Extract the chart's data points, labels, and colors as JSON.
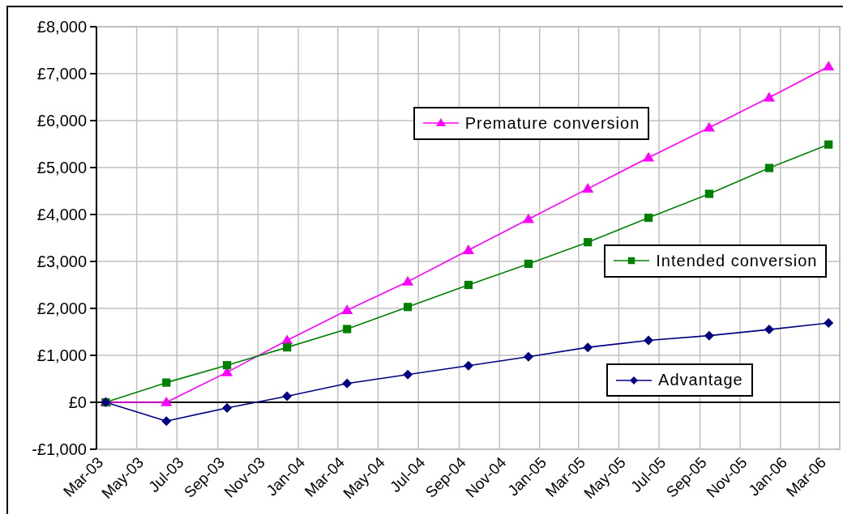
{
  "chart_data": {
    "type": "line",
    "x": [
      "2003-03-15",
      "2003-06-15",
      "2003-09-15",
      "2003-12-15",
      "2004-03-15",
      "2004-06-15",
      "2004-09-15",
      "2004-12-15",
      "2005-03-15",
      "2005-06-15",
      "2005-09-15",
      "2005-12-15",
      "2006-03-15"
    ],
    "series": [
      {
        "name": "Premature conversion",
        "color": "#ff00ff",
        "marker": "triangle",
        "values": [
          0,
          0,
          640,
          1320,
          1960,
          2570,
          3240,
          3900,
          4550,
          5210,
          5850,
          6490,
          7150
        ]
      },
      {
        "name": "Intended conversion",
        "color": "#008000",
        "marker": "square",
        "values": [
          0,
          420,
          790,
          1170,
          1560,
          2030,
          2500,
          2950,
          3410,
          3930,
          4440,
          4990,
          5490
        ]
      },
      {
        "name": "Advantage",
        "color": "#000080",
        "marker": "diamond",
        "values": [
          0,
          -400,
          -120,
          130,
          400,
          590,
          780,
          970,
          1170,
          1320,
          1420,
          1550,
          1690
        ]
      }
    ],
    "xlim": [
      "2003-03-01",
      "2006-04-01"
    ],
    "xticks": [
      {
        "value": "2003-03-01",
        "label": "Mar-03"
      },
      {
        "value": "2003-05-01",
        "label": "May-03"
      },
      {
        "value": "2003-07-01",
        "label": "Jul-03"
      },
      {
        "value": "2003-09-01",
        "label": "Sep-03"
      },
      {
        "value": "2003-11-01",
        "label": "Nov-03"
      },
      {
        "value": "2004-01-01",
        "label": "Jan-04"
      },
      {
        "value": "2004-03-01",
        "label": "Mar-04"
      },
      {
        "value": "2004-05-01",
        "label": "May-04"
      },
      {
        "value": "2004-07-01",
        "label": "Jul-04"
      },
      {
        "value": "2004-09-01",
        "label": "Sep-04"
      },
      {
        "value": "2004-11-01",
        "label": "Nov-04"
      },
      {
        "value": "2005-01-01",
        "label": "Jan-05"
      },
      {
        "value": "2005-03-01",
        "label": "Mar-05"
      },
      {
        "value": "2005-05-01",
        "label": "May-05"
      },
      {
        "value": "2005-07-01",
        "label": "Jul-05"
      },
      {
        "value": "2005-09-01",
        "label": "Sep-05"
      },
      {
        "value": "2005-11-01",
        "label": "Nov-05"
      },
      {
        "value": "2006-01-01",
        "label": "Jan-06"
      },
      {
        "value": "2006-03-01",
        "label": "Mar-06"
      }
    ],
    "ylim": [
      -1000,
      8000
    ],
    "yticks": [
      {
        "value": -1000,
        "label": "-£1,000"
      },
      {
        "value": 0,
        "label": "£0"
      },
      {
        "value": 1000,
        "label": "£1,000"
      },
      {
        "value": 2000,
        "label": "£2,000"
      },
      {
        "value": 3000,
        "label": "£3,000"
      },
      {
        "value": 4000,
        "label": "£4,000"
      },
      {
        "value": 5000,
        "label": "£5,000"
      },
      {
        "value": 6000,
        "label": "£6,000"
      },
      {
        "value": 7000,
        "label": "£7,000"
      },
      {
        "value": 8000,
        "label": "£8,000"
      }
    ],
    "ref_lines": [
      {
        "axis": "y",
        "value": 0,
        "color": "#000000"
      }
    ],
    "grid": true,
    "legend": "right"
  }
}
